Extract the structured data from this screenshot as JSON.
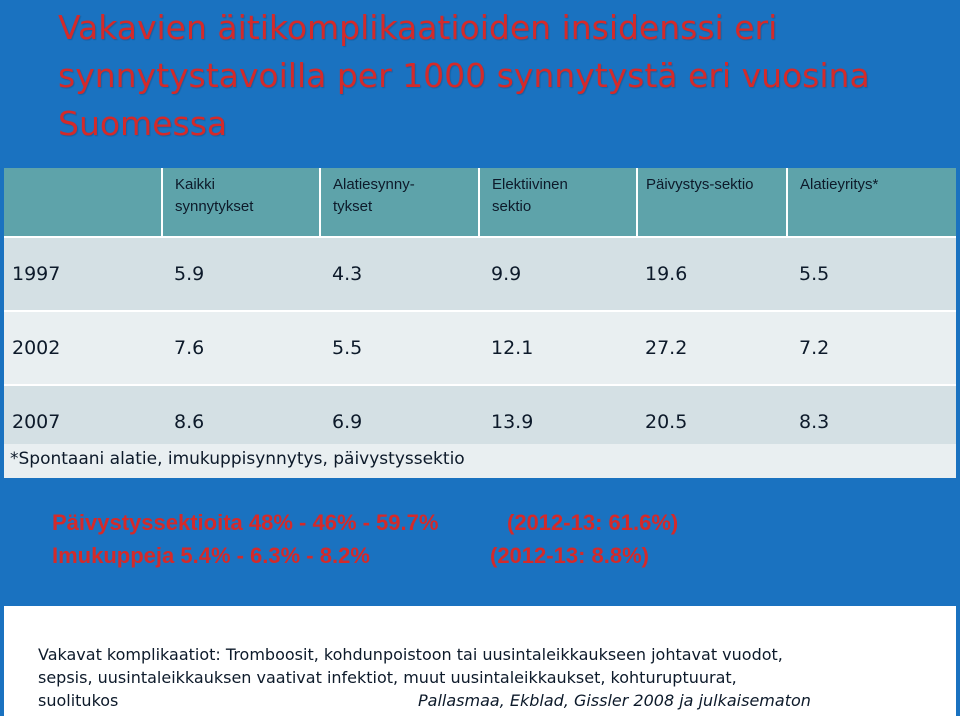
{
  "title": {
    "line1": "Vakavien äitikomplikaatioiden insidenssi eri",
    "line2": "synnytystavoilla per 1000 synnytystä eri vuosina",
    "line3": "Suomessa"
  },
  "table": {
    "headers": [
      {
        "lines": [
          "",
          ""
        ]
      },
      {
        "lines": [
          "Kaikki",
          "synnytykset"
        ]
      },
      {
        "lines": [
          "Alatiesynny-",
          "tykset"
        ]
      },
      {
        "lines": [
          "Elektiivinen",
          "sektio"
        ]
      },
      {
        "lines": [
          "Päivystys-sektio",
          ""
        ]
      },
      {
        "lines": [
          "Alatieyritys*",
          ""
        ]
      }
    ],
    "rows": [
      [
        "1997",
        "5.9",
        "4.3",
        "9.9",
        "19.6",
        "5.5"
      ],
      [
        "2002",
        "7.6",
        "5.5",
        "12.1",
        "27.2",
        "7.2"
      ],
      [
        "2007",
        "8.6",
        "6.9",
        "13.9",
        "20.5",
        "8.3"
      ]
    ]
  },
  "footnote": "*Spontaani alatie, imukuppisynnytys, päivystyssektio",
  "stats": {
    "line1_left": "Päivystyssektioita 48% - 46% - 59.7%",
    "line1_right": "(2012-13: 61.6%)",
    "line2_left": "Imukuppeja 5.4% - 6.3% - 8.2%",
    "line2_right": "(2012-13: 8.8%)"
  },
  "bottom": {
    "line1": "Vakavat komplikaatiot: Tromboosit, kohdunpoistoon tai uusintaleikkaukseen johtavat vuodot,",
    "line2": "sepsis, uusintaleikkauksen vaativat infektiot, muut uusintaleikkaukset, kohturuptuurat,",
    "line3": "suolitukos",
    "citation": "Pallasmaa, Ekblad, Gissler 2008 ja julkaisematon"
  },
  "colors": {
    "background": "#1a72c0",
    "title": "#d42a2a",
    "header_fill": "#5ea3aa",
    "row_dark": "#d4e0e4",
    "row_light": "#e9eff1"
  }
}
